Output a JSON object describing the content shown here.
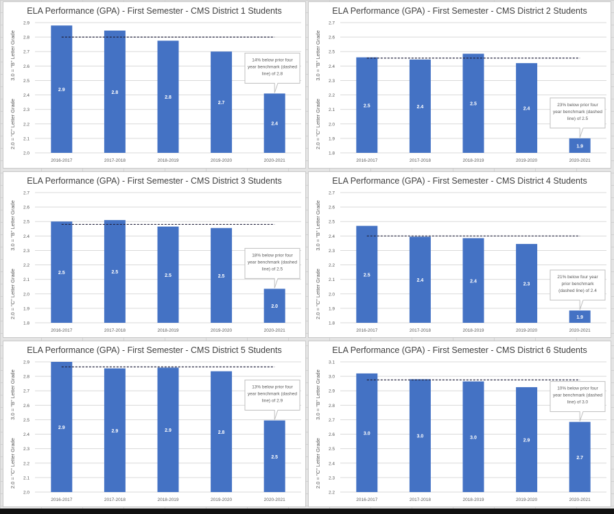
{
  "chart_data": [
    {
      "type": "bar",
      "title": "ELA Performance (GPA) - First Semester - CMS District 1 Students",
      "ylabel_upper": "3.0 = \"B\" Letter Grade",
      "ylabel_lower": "2.0 = \"C\" Letter Grade",
      "categories": [
        "2016-2017",
        "2017-2018",
        "2018-2019",
        "2019-2020",
        "2020-2021"
      ],
      "values": [
        2.88,
        2.845,
        2.775,
        2.7,
        2.41
      ],
      "data_labels": [
        "2.9",
        "2.8",
        "2.8",
        "2.7",
        "2.4"
      ],
      "benchmark": 2.8,
      "ylim": [
        2.0,
        2.9
      ],
      "yticks": [
        "2.0",
        "2.1",
        "2.2",
        "2.3",
        "2.4",
        "2.5",
        "2.6",
        "2.7",
        "2.8",
        "2.9"
      ],
      "annotation": "14% below prior four year benchmark (dashed line) of 2.8",
      "grid": true
    },
    {
      "type": "bar",
      "title": "ELA Performance (GPA) - First Semester - CMS District 2 Students",
      "ylabel_upper": "3.0 = \"B\" Letter Grade",
      "ylabel_lower": "2.0 = \"C\" Letter Grade",
      "categories": [
        "2016-2017",
        "2017-2018",
        "2018-2019",
        "2019-2020",
        "2020-2021"
      ],
      "values": [
        2.46,
        2.445,
        2.485,
        2.42,
        1.9
      ],
      "data_labels": [
        "2.5",
        "2.4",
        "2.5",
        "2.4",
        "1.9"
      ],
      "benchmark": 2.455,
      "ylim": [
        1.8,
        2.7
      ],
      "yticks": [
        "1.8",
        "1.9",
        "2.0",
        "2.1",
        "2.2",
        "2.3",
        "2.4",
        "2.5",
        "2.6",
        "2.7"
      ],
      "annotation": "23% below prior four year benchmark (dashed line) of 2.5",
      "grid": true
    },
    {
      "type": "bar",
      "title": "ELA Performance (GPA) - First Semester - CMS District 3 Students",
      "ylabel_upper": "3.0 = \"B\" Letter Grade",
      "ylabel_lower": "2.0 = \"C\" Letter Grade",
      "categories": [
        "2016-2017",
        "2017-2018",
        "2018-2019",
        "2019-2020",
        "2020-2021"
      ],
      "values": [
        2.5,
        2.51,
        2.465,
        2.455,
        2.035
      ],
      "data_labels": [
        "2.5",
        "2.5",
        "2.5",
        "2.5",
        "2.0"
      ],
      "benchmark": 2.48,
      "ylim": [
        1.8,
        2.7
      ],
      "yticks": [
        "1.8",
        "1.9",
        "2.0",
        "2.1",
        "2.2",
        "2.3",
        "2.4",
        "2.5",
        "2.6",
        "2.7"
      ],
      "annotation": "18% below prior four year benchmark (dashed line) of 2.5",
      "grid": true
    },
    {
      "type": "bar",
      "title": "ELA Performance (GPA) - First Semester - CMS District 4 Students",
      "ylabel_upper": "3.0 = \"B\" Letter Grade",
      "ylabel_lower": "2.0 = \"C\" Letter Grade",
      "categories": [
        "2016-2017",
        "2017-2018",
        "2018-2019",
        "2019-2020",
        "2020-2021"
      ],
      "values": [
        2.47,
        2.395,
        2.385,
        2.345,
        1.885
      ],
      "data_labels": [
        "2.5",
        "2.4",
        "2.4",
        "2.3",
        "1.9"
      ],
      "benchmark": 2.4,
      "ylim": [
        1.8,
        2.7
      ],
      "yticks": [
        "1.8",
        "1.9",
        "2.0",
        "2.1",
        "2.2",
        "2.3",
        "2.4",
        "2.5",
        "2.6",
        "2.7"
      ],
      "annotation": "21% below four year prior benchmark (dashed line) of 2.4",
      "grid": true
    },
    {
      "type": "bar",
      "title": "ELA Performance (GPA) - First Semester - CMS District 5 Students",
      "ylabel_upper": "3.0 = \"B\" Letter Grade",
      "ylabel_lower": "2.0 = \"C\" Letter Grade",
      "categories": [
        "2016-2017",
        "2017-2018",
        "2018-2019",
        "2019-2020",
        "2020-2021"
      ],
      "values": [
        2.9,
        2.855,
        2.86,
        2.835,
        2.495
      ],
      "data_labels": [
        "2.9",
        "2.9",
        "2.9",
        "2.8",
        "2.5"
      ],
      "benchmark": 2.865,
      "ylim": [
        2.0,
        2.9
      ],
      "yticks": [
        "2.0",
        "2.1",
        "2.2",
        "2.3",
        "2.4",
        "2.5",
        "2.6",
        "2.7",
        "2.8",
        "2.9"
      ],
      "annotation": "13% below prior four year benchmark (dashed line) of 2.9",
      "grid": true
    },
    {
      "type": "bar",
      "title": "ELA Performance (GPA) - First Semester - CMS District 6 Students",
      "ylabel_upper": "3.0 = \"B\" Letter Grade",
      "ylabel_lower": "2.0 = \"C\" Letter Grade",
      "categories": [
        "2016-2017",
        "2017-2018",
        "2018-2019",
        "2019-2020",
        "2020-2021"
      ],
      "values": [
        3.02,
        2.98,
        2.965,
        2.925,
        2.685
      ],
      "data_labels": [
        "3.0",
        "3.0",
        "3.0",
        "2.9",
        "2.7"
      ],
      "benchmark": 2.975,
      "ylim": [
        2.2,
        3.1
      ],
      "yticks": [
        "2.2",
        "2.3",
        "2.4",
        "2.5",
        "2.6",
        "2.7",
        "2.8",
        "2.9",
        "3.0",
        "3.1"
      ],
      "annotation": "10% below prior four year benchmark (dashed line) of 3.0",
      "grid": true
    }
  ],
  "colors": {
    "bar": "#4472c4",
    "grid": "#d9d9d9",
    "text": "#595959",
    "title": "#404040"
  }
}
